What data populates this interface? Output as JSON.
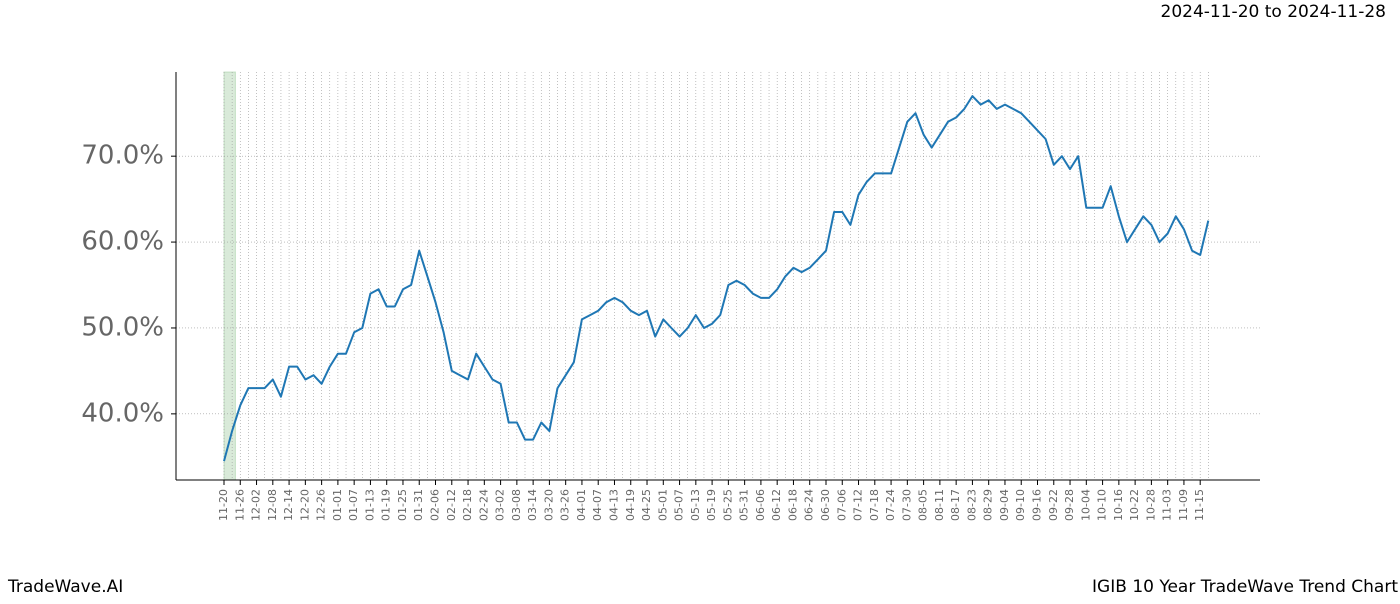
{
  "chart_data": {
    "type": "line",
    "date_range": "2024-11-20 to 2024-11-28",
    "brand": "TradeWave.AI",
    "title": "IGIB 10 Year TradeWave Trend Chart",
    "categories": [
      "11-20",
      null,
      "11-26",
      null,
      "12-02",
      null,
      "12-08",
      null,
      "12-14",
      null,
      "12-20",
      null,
      "12-26",
      null,
      "01-01",
      null,
      "01-07",
      null,
      "01-13",
      null,
      "01-19",
      null,
      "01-25",
      null,
      "01-31",
      null,
      "02-06",
      null,
      "02-12",
      null,
      "02-18",
      null,
      "02-24",
      null,
      "03-02",
      null,
      "03-08",
      null,
      "03-14",
      null,
      "03-20",
      null,
      "03-26",
      null,
      "04-01",
      null,
      "04-07",
      null,
      "04-13",
      null,
      "04-19",
      null,
      "04-25",
      null,
      "05-01",
      null,
      "05-07",
      null,
      "05-13",
      null,
      "05-19",
      null,
      "05-25",
      null,
      "05-31",
      null,
      "06-06",
      null,
      "06-12",
      null,
      "06-18",
      null,
      "06-24",
      null,
      "06-30",
      null,
      "07-06",
      null,
      "07-12",
      null,
      "07-18",
      null,
      "07-24",
      null,
      "07-30",
      null,
      "08-05",
      null,
      "08-11",
      null,
      "08-17",
      null,
      "08-23",
      null,
      "08-29",
      null,
      "09-04",
      null,
      "09-10",
      null,
      "09-16",
      null,
      "09-22",
      null,
      "09-28",
      null,
      "10-04",
      null,
      "10-10",
      null,
      "10-16",
      null,
      "10-22",
      null,
      "10-28",
      null,
      "11-03",
      null,
      "11-09",
      null,
      "11-15",
      null
    ],
    "series": [
      {
        "name": "IGIB",
        "color": "#1f77b4",
        "values": [
          34.5,
          38,
          41,
          43,
          43,
          43,
          44,
          42,
          45.5,
          45.5,
          44,
          44.5,
          43.5,
          45.5,
          47,
          47,
          49.5,
          50,
          54,
          54.5,
          52.5,
          52.5,
          54.5,
          55,
          59,
          56,
          53,
          49.5,
          45,
          44.5,
          44,
          47,
          45.5,
          44,
          43.5,
          39,
          39,
          37,
          37,
          39,
          38,
          43,
          44.5,
          46,
          51,
          51.5,
          52,
          53,
          53.5,
          53,
          52,
          51.5,
          52,
          49,
          51,
          50,
          49,
          50,
          51.5,
          50,
          50.5,
          51.5,
          55,
          55.5,
          55,
          54,
          53.5,
          53.5,
          54.5,
          56,
          57,
          56.5,
          57,
          58,
          59,
          63.5,
          63.5,
          62,
          65.5,
          67,
          68,
          68,
          68,
          71,
          74,
          75,
          72.5,
          71,
          72.5,
          74,
          74.5,
          75.5,
          77,
          76,
          76.5,
          75.5,
          76,
          75.5,
          75,
          74,
          73,
          72,
          69,
          70,
          68.5,
          70,
          64,
          64,
          64,
          66.5,
          63,
          60,
          61.5,
          63,
          62,
          60,
          61,
          63,
          61.5,
          59,
          58.5,
          62.5
        ]
      }
    ],
    "ylim": [
      32.3,
      79.8
    ],
    "yticks": [
      {
        "value": 40,
        "label": "40.0%"
      },
      {
        "value": 50,
        "label": "50.0%"
      },
      {
        "value": 60,
        "label": "60.0%"
      },
      {
        "value": 70,
        "label": "70.0%"
      }
    ],
    "grid": true,
    "highlight_color": "#d9ead9"
  }
}
